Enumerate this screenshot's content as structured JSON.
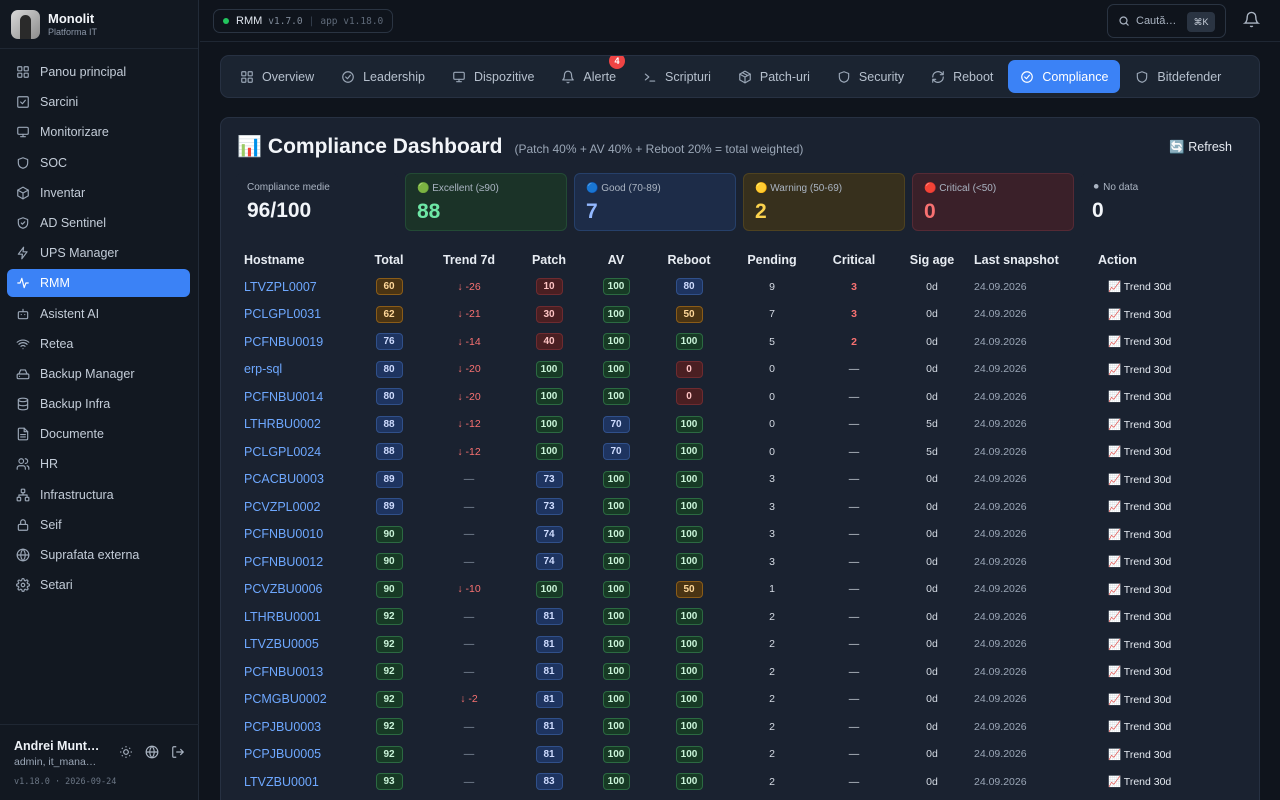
{
  "brand": {
    "title": "Monolit",
    "subtitle": "Platforma IT"
  },
  "sidebar": {
    "items": [
      {
        "label": "Panou principal",
        "icon": "grid-icon"
      },
      {
        "label": "Sarcini",
        "icon": "checkbox-icon"
      },
      {
        "label": "Monitorizare",
        "icon": "monitor-icon"
      },
      {
        "label": "SOC",
        "icon": "shield-icon"
      },
      {
        "label": "Inventar",
        "icon": "cube-icon"
      },
      {
        "label": "AD Sentinel",
        "icon": "shield-check-icon"
      },
      {
        "label": "UPS Manager",
        "icon": "bolt-icon"
      },
      {
        "label": "RMM",
        "icon": "pulse-icon",
        "active": true
      },
      {
        "label": "Asistent AI",
        "icon": "robot-icon"
      },
      {
        "label": "Retea",
        "icon": "wifi-icon"
      },
      {
        "label": "Backup Manager",
        "icon": "drive-icon"
      },
      {
        "label": "Backup Infra",
        "icon": "database-icon"
      },
      {
        "label": "Documente",
        "icon": "document-icon"
      },
      {
        "label": "HR",
        "icon": "users-icon"
      },
      {
        "label": "Infrastructura",
        "icon": "network-icon"
      },
      {
        "label": "Seif",
        "icon": "lock-icon"
      },
      {
        "label": "Suprafata externa",
        "icon": "globe-icon"
      },
      {
        "label": "Setari",
        "icon": "gear-icon"
      }
    ]
  },
  "user": {
    "name": "Andrei Munt…",
    "role": "admin, it_mana…",
    "version": "v1.18.0 · 2026-09-24"
  },
  "topbar": {
    "module": "RMM",
    "rmm_version": "v1.7.0",
    "app_version": "app v1.18.0",
    "search_placeholder": "Caută…",
    "shortcut": "⌘K"
  },
  "tabs": [
    {
      "label": "Overview",
      "icon": "grid-icon"
    },
    {
      "label": "Leadership",
      "icon": "check-circle-icon"
    },
    {
      "label": "Dispozitive",
      "icon": "monitor-icon"
    },
    {
      "label": "Alerte",
      "icon": "bell-icon",
      "badge": "4"
    },
    {
      "label": "Scripturi",
      "icon": "terminal-icon"
    },
    {
      "label": "Patch-uri",
      "icon": "package-icon"
    },
    {
      "label": "Security",
      "icon": "shield-icon"
    },
    {
      "label": "Reboot",
      "icon": "refresh-icon"
    },
    {
      "label": "Compliance",
      "icon": "check-circle-icon",
      "active": true
    },
    {
      "label": "Bitdefender",
      "icon": "shield-icon"
    }
  ],
  "dashboard": {
    "title": "Compliance Dashboard",
    "subtitle": "(Patch 40% + AV 40% + Reboot 20% = total weighted)",
    "refresh": "🔄 Refresh",
    "cards": [
      {
        "label": "Compliance medie",
        "value": "96/100",
        "kind": "avg"
      },
      {
        "label": "🟢 Excellent (≥90)",
        "value": "88",
        "kind": "ex"
      },
      {
        "label": "🔵 Good (70-89)",
        "value": "7",
        "kind": "good"
      },
      {
        "label": "🟡 Warning (50-69)",
        "value": "2",
        "kind": "warn"
      },
      {
        "label": "🔴 Critical (<50)",
        "value": "0",
        "kind": "crit"
      },
      {
        "label": "⚫ No data",
        "value": "0",
        "kind": "nd"
      }
    ],
    "columns": [
      "Hostname",
      "Total",
      "Trend 7d",
      "Patch",
      "AV",
      "Reboot",
      "Pending",
      "Critical",
      "Sig age",
      "Last snapshot",
      "Action"
    ],
    "action_label": "📈 Trend 30d",
    "rows": [
      {
        "host": "LTVZPL0007",
        "total": 60,
        "trend": "↓ -26",
        "patch": 10,
        "av": 100,
        "reboot": 80,
        "pending": "9",
        "critical": "3",
        "sig": "0d",
        "snap": "24.09.2026"
      },
      {
        "host": "PCLGPL0031",
        "total": 62,
        "trend": "↓ -21",
        "patch": 30,
        "av": 100,
        "reboot": 50,
        "pending": "7",
        "critical": "3",
        "sig": "0d",
        "snap": "24.09.2026"
      },
      {
        "host": "PCFNBU0019",
        "total": 76,
        "trend": "↓ -14",
        "patch": 40,
        "av": 100,
        "reboot": 100,
        "pending": "5",
        "critical": "2",
        "sig": "0d",
        "snap": "24.09.2026"
      },
      {
        "host": "erp-sql",
        "total": 80,
        "trend": "↓ -20",
        "patch": 100,
        "av": 100,
        "reboot": 0,
        "pending": "0",
        "critical": "—",
        "sig": "0d",
        "snap": "24.09.2026"
      },
      {
        "host": "PCFNBU0014",
        "total": 80,
        "trend": "↓ -20",
        "patch": 100,
        "av": 100,
        "reboot": 0,
        "pending": "0",
        "critical": "—",
        "sig": "0d",
        "snap": "24.09.2026"
      },
      {
        "host": "LTHRBU0002",
        "total": 88,
        "trend": "↓ -12",
        "patch": 100,
        "av": 70,
        "reboot": 100,
        "pending": "0",
        "critical": "—",
        "sig": "5d",
        "snap": "24.09.2026"
      },
      {
        "host": "PCLGPL0024",
        "total": 88,
        "trend": "↓ -12",
        "patch": 100,
        "av": 70,
        "reboot": 100,
        "pending": "0",
        "critical": "—",
        "sig": "5d",
        "snap": "24.09.2026"
      },
      {
        "host": "PCACBU0003",
        "total": 89,
        "trend": "—",
        "patch": 73,
        "av": 100,
        "reboot": 100,
        "pending": "3",
        "critical": "—",
        "sig": "0d",
        "snap": "24.09.2026"
      },
      {
        "host": "PCVZPL0002",
        "total": 89,
        "trend": "—",
        "patch": 73,
        "av": 100,
        "reboot": 100,
        "pending": "3",
        "critical": "—",
        "sig": "0d",
        "snap": "24.09.2026"
      },
      {
        "host": "PCFNBU0010",
        "total": 90,
        "trend": "—",
        "patch": 74,
        "av": 100,
        "reboot": 100,
        "pending": "3",
        "critical": "—",
        "sig": "0d",
        "snap": "24.09.2026"
      },
      {
        "host": "PCFNBU0012",
        "total": 90,
        "trend": "—",
        "patch": 74,
        "av": 100,
        "reboot": 100,
        "pending": "3",
        "critical": "—",
        "sig": "0d",
        "snap": "24.09.2026"
      },
      {
        "host": "PCVZBU0006",
        "total": 90,
        "trend": "↓ -10",
        "patch": 100,
        "av": 100,
        "reboot": 50,
        "pending": "1",
        "critical": "—",
        "sig": "0d",
        "snap": "24.09.2026"
      },
      {
        "host": "LTHRBU0001",
        "total": 92,
        "trend": "—",
        "patch": 81,
        "av": 100,
        "reboot": 100,
        "pending": "2",
        "critical": "—",
        "sig": "0d",
        "snap": "24.09.2026"
      },
      {
        "host": "LTVZBU0005",
        "total": 92,
        "trend": "—",
        "patch": 81,
        "av": 100,
        "reboot": 100,
        "pending": "2",
        "critical": "—",
        "sig": "0d",
        "snap": "24.09.2026"
      },
      {
        "host": "PCFNBU0013",
        "total": 92,
        "trend": "—",
        "patch": 81,
        "av": 100,
        "reboot": 100,
        "pending": "2",
        "critical": "—",
        "sig": "0d",
        "snap": "24.09.2026"
      },
      {
        "host": "PCMGBU0002",
        "total": 92,
        "trend": "↓ -2",
        "patch": 81,
        "av": 100,
        "reboot": 100,
        "pending": "2",
        "critical": "—",
        "sig": "0d",
        "snap": "24.09.2026"
      },
      {
        "host": "PCPJBU0003",
        "total": 92,
        "trend": "—",
        "patch": 81,
        "av": 100,
        "reboot": 100,
        "pending": "2",
        "critical": "—",
        "sig": "0d",
        "snap": "24.09.2026"
      },
      {
        "host": "PCPJBU0005",
        "total": 92,
        "trend": "—",
        "patch": 81,
        "av": 100,
        "reboot": 100,
        "pending": "2",
        "critical": "—",
        "sig": "0d",
        "snap": "24.09.2026"
      },
      {
        "host": "LTVZBU0001",
        "total": 93,
        "trend": "—",
        "patch": 83,
        "av": 100,
        "reboot": 100,
        "pending": "2",
        "critical": "—",
        "sig": "0d",
        "snap": "24.09.2026"
      }
    ]
  },
  "colors": {
    "accent": "#3b82f6",
    "link": "#6ea8ff",
    "danger": "#ef4444",
    "success": "#22c55e"
  }
}
